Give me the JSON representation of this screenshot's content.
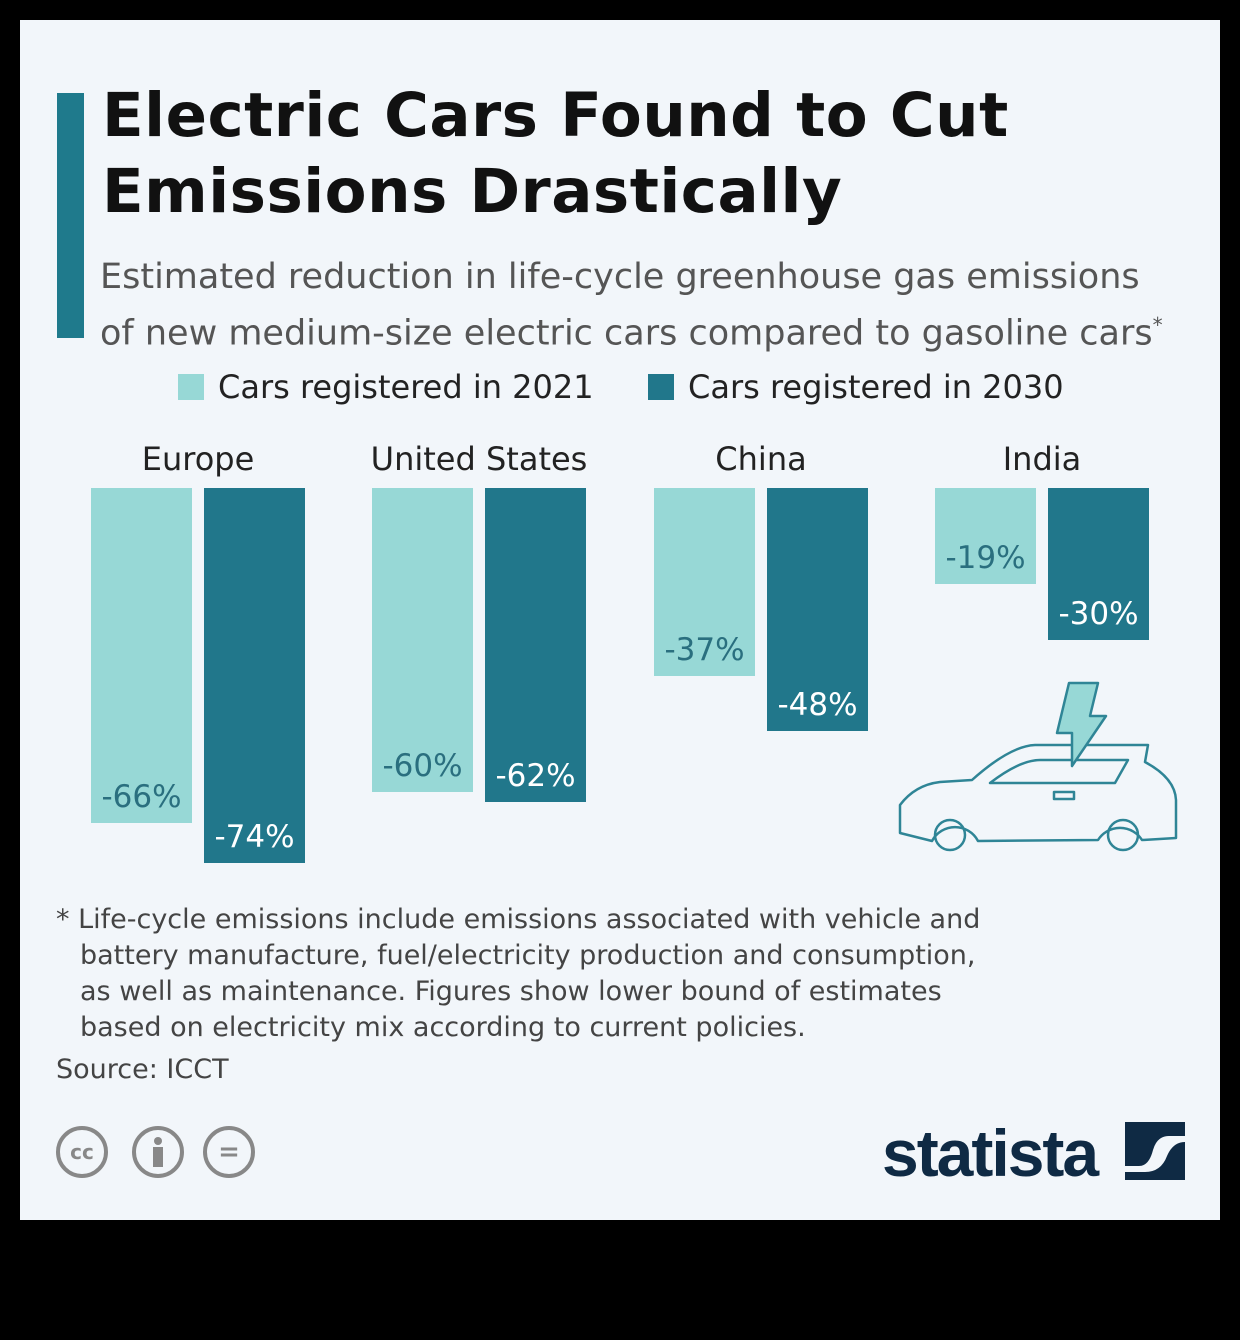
{
  "title": [
    "Electric Cars Found to Cut",
    "Emissions Drastically"
  ],
  "subtitle": [
    "Estimated reduction in life-cycle greenhouse gas emissions",
    "of new medium-size electric cars compared to gasoline cars"
  ],
  "subtitle_mark": "*",
  "colors": {
    "s2021": "#97d8d6",
    "s2030": "#21778b",
    "accent": "#1f7a8c",
    "logo": "#0f2a44"
  },
  "chart_data": {
    "type": "bar",
    "categories": [
      "Europe",
      "United States",
      "China",
      "India"
    ],
    "series": [
      {
        "name": "Cars registered in 2021",
        "values": [
          -66,
          -60,
          -37,
          -19
        ],
        "labels": [
          "-66%",
          "-60%",
          "-37%",
          "-19%"
        ]
      },
      {
        "name": "Cars registered in 2030",
        "values": [
          -74,
          -62,
          -48,
          -30
        ],
        "labels": [
          "-74%",
          "-62%",
          "-48%",
          "-30%"
        ]
      }
    ],
    "ylabel": "",
    "xlabel": "",
    "ylim": [
      -80,
      0
    ],
    "grid": false,
    "legend": "top-center"
  },
  "footnote": [
    "* Life-cycle emissions include emissions associated with vehicle and",
    "battery manufacture, fuel/electricity production and consumption,",
    "as well as maintenance. Figures show lower bound of estimates",
    "based on electricity mix according to current policies."
  ],
  "source": "Source: ICCT",
  "license": {
    "cc": "cc",
    "eq": "="
  },
  "logo": "statista"
}
